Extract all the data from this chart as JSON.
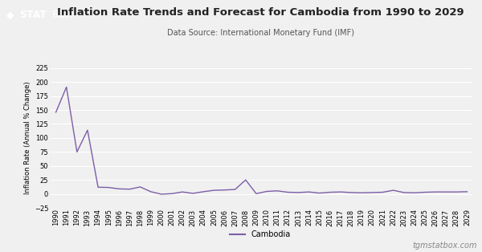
{
  "title": "Inflation Rate Trends and Forecast for Cambodia from 1990 to 2029",
  "subtitle": "Data Source: International Monetary Fund (IMF)",
  "ylabel": "Inflation Rate (Annual % Change)",
  "line_color": "#7B5EA7",
  "line_label": "Cambodia",
  "bg_color": "#F0F0F0",
  "plot_bg_color": "#F0F0F0",
  "grid_color": "#FFFFFF",
  "ylim": [
    -25,
    225
  ],
  "yticks": [
    -25,
    0,
    25,
    50,
    75,
    100,
    125,
    150,
    175,
    200,
    225
  ],
  "watermark": "tgmstatbox.com",
  "title_fontsize": 9.5,
  "subtitle_fontsize": 7,
  "ylabel_fontsize": 6,
  "tick_fontsize": 6,
  "legend_fontsize": 7,
  "watermark_fontsize": 7,
  "logo_stat_color": "#222222",
  "logo_box_color": "#4A4A4A",
  "years": [
    1990,
    1991,
    1992,
    1993,
    1994,
    1995,
    1996,
    1997,
    1998,
    1999,
    2000,
    2001,
    2002,
    2003,
    2004,
    2005,
    2006,
    2007,
    2008,
    2009,
    2010,
    2011,
    2012,
    2013,
    2014,
    2015,
    2016,
    2017,
    2018,
    2019,
    2020,
    2021,
    2022,
    2023,
    2024,
    2025,
    2026,
    2027,
    2028,
    2029
  ],
  "values": [
    146.0,
    191.0,
    75.0,
    114.0,
    12.0,
    11.5,
    9.0,
    8.5,
    12.5,
    4.0,
    -0.5,
    0.5,
    3.5,
    1.0,
    4.0,
    6.5,
    7.0,
    8.0,
    25.0,
    0.5,
    4.5,
    5.5,
    3.0,
    2.5,
    3.5,
    1.5,
    3.0,
    3.5,
    2.5,
    2.0,
    2.5,
    3.0,
    6.5,
    2.5,
    2.0,
    3.0,
    3.5,
    3.5,
    3.5,
    4.0
  ]
}
